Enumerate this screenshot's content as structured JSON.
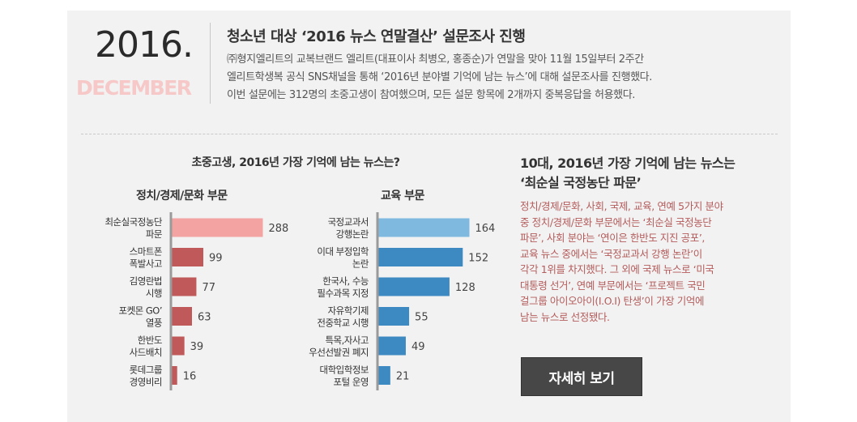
{
  "header": {
    "year": "2016.",
    "month": "DECEMBER",
    "title": "청소년 대상 ‘2016 뉴스 연말결산’ 설문조사 진행",
    "desc_lines": [
      "㈜형지엘리트의 교복브랜드 엘리트(대표이사 최병오, 홍종순)가 연말을 맞아 11월 15일부터  2주간",
      "엘리트학생복 공식 SNS채널을 통해 ‘2016년 분야별 기억에 남는 뉴스’에 대해 설문조사를 진행했다.",
      "이번 설문에는 312명의 초중고생이 참여했으며,  모든 설문 항목에 2개까지 중복응답을 허용했다."
    ]
  },
  "chart_title": "초중고생, 2016년 가장 기억에 남는 뉴스는?",
  "chart_data": [
    {
      "type": "bar",
      "orientation": "horizontal",
      "title": "정치/경제/문화 부문",
      "categories": [
        [
          "최순실국정농단",
          "파문"
        ],
        [
          "스마트폰",
          "폭발사고"
        ],
        [
          "김영란법",
          "시행"
        ],
        [
          "포켓몬 GO’",
          "열풍"
        ],
        [
          "한반도",
          "사드배치"
        ],
        [
          "롯데그룹",
          "경영비리"
        ]
      ],
      "values": [
        288,
        99,
        77,
        63,
        39,
        16
      ],
      "colors": [
        "#f4a3a3",
        "#c05a5a",
        "#c05a5a",
        "#c05a5a",
        "#c05a5a",
        "#c05a5a"
      ]
    },
    {
      "type": "bar",
      "orientation": "horizontal",
      "title": "교육 부문",
      "categories": [
        [
          "국정교과서",
          "강행논란"
        ],
        [
          "이대 부정입학",
          "논란"
        ],
        [
          "한국사, 수능",
          "필수과목 지정"
        ],
        [
          "자유학기제",
          "전중학교 시행"
        ],
        [
          "특목,자사고",
          "우선선발권 폐지"
        ],
        [
          "대학입학정보",
          "포털 운영"
        ]
      ],
      "values": [
        164,
        152,
        128,
        55,
        49,
        21
      ],
      "colors": [
        "#7fb9e0",
        "#3d8ac2",
        "#3d8ac2",
        "#3d8ac2",
        "#3d8ac2",
        "#3d8ac2"
      ]
    }
  ],
  "right": {
    "title_lines": [
      "10대, 2016년 가장 기억에 남는 뉴스는",
      "‘최순실 국정농단 파문’"
    ],
    "body_lines": [
      "정치/경제/문화, 사회, 국제, 교육, 연예 5가지 분야",
      "중 정치/경제/문화 부문에서는 ‘최순실 국정농단",
      "파문’, 사회 분야는 ‘연이은 한반도 지진 공포’,",
      "교육 뉴스 중에서는 ‘국정교과서 강행 논란’이",
      "각각 1위를 차지했다. 그 외에 국제 뉴스로 ‘미국",
      "대통령 선거’, 연예 부문에서는 ‘프로젝트 국민",
      "걸그룹 아이오아이(I.O.I) 탄생’이 가장 기억에",
      "남는 뉴스로 선정됐다."
    ],
    "button_label": "자세히 보기"
  }
}
